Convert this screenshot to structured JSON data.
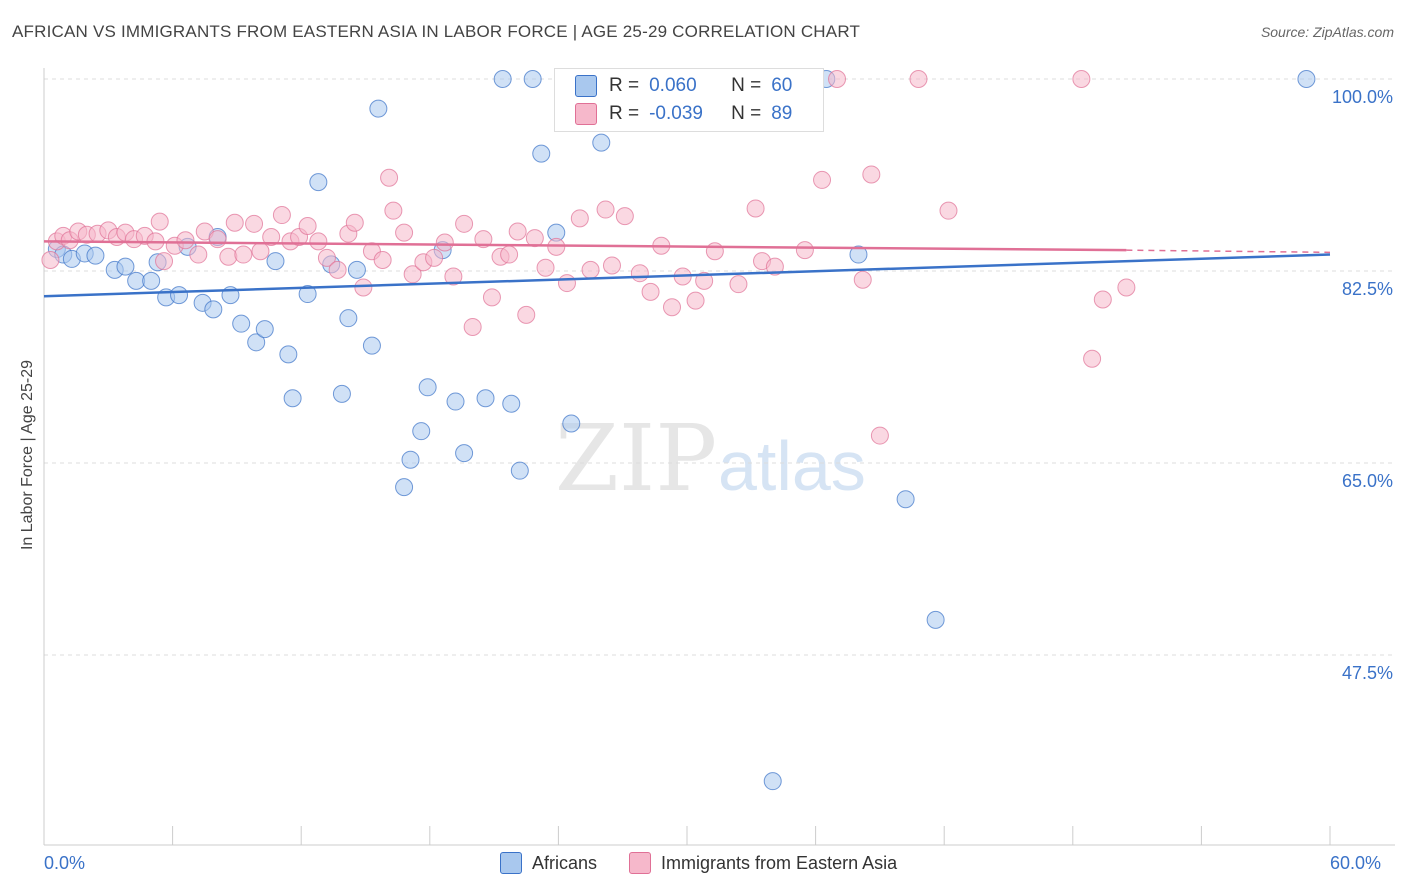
{
  "title": "AFRICAN VS IMMIGRANTS FROM EASTERN ASIA IN LABOR FORCE | AGE 25-29 CORRELATION CHART",
  "source": "Source: ZipAtlas.com",
  "watermark": "ZIPatlas",
  "stats": {
    "r_label": "R =",
    "n_label": "N =",
    "rows": [
      {
        "r": "0.060",
        "n": "60",
        "color": "#a9c8ee"
      },
      {
        "r": "-0.039",
        "n": "89",
        "color": "#f6b8cb"
      }
    ]
  },
  "chart_data": {
    "type": "scatter",
    "ylabel": "In Labor Force | Age 25-29",
    "xlim": [
      0,
      60
    ],
    "ylim": [
      30,
      102.5
    ],
    "x_edge_labels": [
      "0.0%",
      "60.0%"
    ],
    "y_ticks": [
      {
        "value": 100.0,
        "label": "100.0%"
      },
      {
        "value": 82.5,
        "label": "82.5%"
      },
      {
        "value": 65.0,
        "label": "65.0%"
      },
      {
        "value": 47.5,
        "label": "47.5%"
      }
    ],
    "grid": true,
    "legend": "bottom",
    "series": [
      {
        "name": "Africans",
        "color": "#3a72c8",
        "fill": "#a9c8ee",
        "trend": {
          "x": [
            0,
            60
          ],
          "y": [
            80.2,
            84.0
          ]
        },
        "points": [
          [
            0.6,
            84.5
          ],
          [
            0.9,
            84.0
          ],
          [
            1.3,
            83.6
          ],
          [
            1.9,
            84.1
          ],
          [
            2.4,
            83.9
          ],
          [
            3.3,
            82.6
          ],
          [
            3.8,
            82.9
          ],
          [
            4.3,
            81.6
          ],
          [
            5.0,
            81.6
          ],
          [
            5.3,
            83.3
          ],
          [
            5.7,
            80.1
          ],
          [
            6.3,
            80.3
          ],
          [
            6.7,
            84.7
          ],
          [
            7.4,
            79.6
          ],
          [
            7.9,
            79.0
          ],
          [
            8.1,
            85.6
          ],
          [
            8.7,
            80.3
          ],
          [
            9.2,
            77.7
          ],
          [
            9.9,
            76.0
          ],
          [
            10.3,
            77.2
          ],
          [
            10.8,
            83.4
          ],
          [
            11.4,
            74.9
          ],
          [
            11.6,
            70.9
          ],
          [
            12.3,
            80.4
          ],
          [
            12.8,
            90.6
          ],
          [
            13.4,
            83.1
          ],
          [
            13.9,
            71.3
          ],
          [
            14.2,
            78.2
          ],
          [
            14.6,
            82.6
          ],
          [
            15.3,
            75.7
          ],
          [
            15.6,
            97.3
          ],
          [
            16.8,
            62.8
          ],
          [
            17.1,
            65.3
          ],
          [
            17.6,
            67.9
          ],
          [
            17.9,
            71.9
          ],
          [
            18.6,
            84.4
          ],
          [
            19.2,
            70.6
          ],
          [
            19.6,
            65.9
          ],
          [
            20.6,
            70.9
          ],
          [
            21.4,
            100.0
          ],
          [
            21.8,
            70.4
          ],
          [
            22.2,
            64.3
          ],
          [
            22.8,
            100.0
          ],
          [
            23.2,
            93.2
          ],
          [
            23.9,
            86.0
          ],
          [
            24.6,
            68.6
          ],
          [
            26.0,
            94.2
          ],
          [
            28.1,
            100.0
          ],
          [
            29.4,
            100.0
          ],
          [
            30.6,
            100.0
          ],
          [
            31.8,
            100.0
          ],
          [
            32.7,
            100.0
          ],
          [
            33.9,
            100.0
          ],
          [
            34.0,
            36.0
          ],
          [
            35.8,
            100.0
          ],
          [
            36.5,
            100.0
          ],
          [
            38.0,
            84.0
          ],
          [
            40.2,
            61.7
          ],
          [
            41.6,
            50.7
          ],
          [
            58.9,
            100.0
          ]
        ]
      },
      {
        "name": "Immigrants from Eastern Asia",
        "color": "#e07096",
        "fill": "#f6b8cb",
        "trend": {
          "x": [
            0,
            50.5
          ],
          "y": [
            85.2,
            84.4
          ]
        },
        "trend_dash": {
          "x": [
            50.5,
            60
          ],
          "y": [
            84.4,
            84.2
          ]
        },
        "points": [
          [
            0.3,
            83.5
          ],
          [
            0.6,
            85.2
          ],
          [
            0.9,
            85.7
          ],
          [
            1.2,
            85.3
          ],
          [
            1.6,
            86.1
          ],
          [
            2.0,
            85.8
          ],
          [
            2.5,
            85.9
          ],
          [
            3.0,
            86.2
          ],
          [
            3.4,
            85.6
          ],
          [
            3.8,
            86.0
          ],
          [
            4.2,
            85.4
          ],
          [
            4.7,
            85.7
          ],
          [
            5.2,
            85.2
          ],
          [
            5.4,
            87.0
          ],
          [
            5.6,
            83.4
          ],
          [
            6.1,
            84.8
          ],
          [
            6.6,
            85.3
          ],
          [
            7.2,
            84.0
          ],
          [
            7.5,
            86.1
          ],
          [
            8.1,
            85.4
          ],
          [
            8.6,
            83.8
          ],
          [
            8.9,
            86.9
          ],
          [
            9.3,
            84.0
          ],
          [
            9.8,
            86.8
          ],
          [
            10.1,
            84.3
          ],
          [
            10.6,
            85.6
          ],
          [
            11.1,
            87.6
          ],
          [
            11.5,
            85.2
          ],
          [
            11.9,
            85.6
          ],
          [
            12.3,
            86.6
          ],
          [
            12.8,
            85.2
          ],
          [
            13.2,
            83.7
          ],
          [
            13.7,
            82.6
          ],
          [
            14.2,
            85.9
          ],
          [
            14.5,
            86.9
          ],
          [
            14.9,
            81.0
          ],
          [
            15.3,
            84.3
          ],
          [
            15.8,
            83.5
          ],
          [
            16.1,
            91.0
          ],
          [
            16.3,
            88.0
          ],
          [
            16.8,
            86.0
          ],
          [
            17.2,
            82.2
          ],
          [
            17.7,
            83.3
          ],
          [
            18.2,
            83.7
          ],
          [
            18.7,
            85.1
          ],
          [
            19.1,
            82.0
          ],
          [
            19.6,
            86.8
          ],
          [
            20.0,
            77.4
          ],
          [
            20.5,
            85.4
          ],
          [
            20.9,
            80.1
          ],
          [
            21.3,
            83.8
          ],
          [
            21.7,
            84.0
          ],
          [
            22.1,
            86.1
          ],
          [
            22.5,
            78.5
          ],
          [
            22.9,
            85.5
          ],
          [
            23.4,
            82.8
          ],
          [
            23.9,
            84.7
          ],
          [
            24.4,
            81.4
          ],
          [
            25.0,
            87.3
          ],
          [
            25.5,
            82.6
          ],
          [
            26.2,
            88.1
          ],
          [
            26.5,
            83.0
          ],
          [
            27.1,
            87.5
          ],
          [
            27.8,
            82.3
          ],
          [
            28.3,
            80.6
          ],
          [
            28.8,
            84.8
          ],
          [
            29.3,
            79.2
          ],
          [
            29.8,
            82.0
          ],
          [
            30.4,
            79.8
          ],
          [
            30.8,
            81.6
          ],
          [
            31.3,
            84.3
          ],
          [
            32.4,
            81.3
          ],
          [
            32.7,
            100.0
          ],
          [
            33.2,
            88.2
          ],
          [
            33.5,
            83.4
          ],
          [
            34.1,
            82.9
          ],
          [
            34.7,
            100.0
          ],
          [
            35.5,
            84.4
          ],
          [
            36.3,
            90.8
          ],
          [
            37.0,
            100.0
          ],
          [
            38.2,
            81.7
          ],
          [
            38.6,
            91.3
          ],
          [
            39.0,
            67.5
          ],
          [
            40.8,
            100.0
          ],
          [
            42.2,
            88.0
          ],
          [
            48.4,
            100.0
          ],
          [
            48.9,
            74.5
          ],
          [
            49.4,
            79.9
          ],
          [
            50.5,
            81.0
          ]
        ]
      }
    ]
  }
}
